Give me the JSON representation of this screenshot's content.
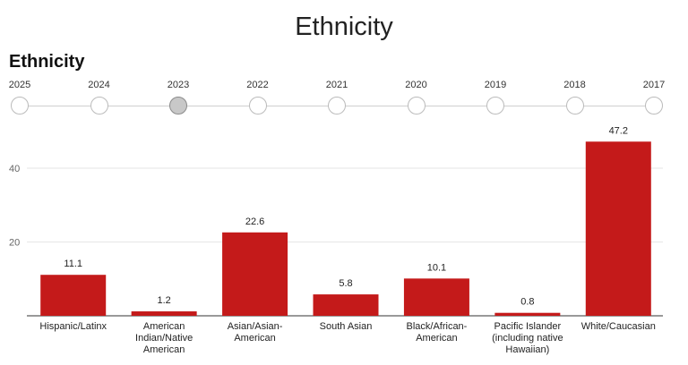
{
  "header": {
    "title": "Ethnicity"
  },
  "chart_title": "Ethnicity",
  "timeline": {
    "years": [
      "2025",
      "2024",
      "2023",
      "2022",
      "2021",
      "2020",
      "2019",
      "2018",
      "2017"
    ],
    "selected": "2023"
  },
  "chart_data": {
    "type": "bar",
    "title": "Ethnicity",
    "xlabel": "",
    "ylabel": "",
    "categories": [
      "Hispanic/Latinx",
      "American Indian/Native American",
      "Asian/Asian-American",
      "South Asian",
      "Black/African-American",
      "Pacific Islander (including native Hawaiian)",
      "White/Caucasian"
    ],
    "category_lines": [
      [
        "Hispanic/Latinx"
      ],
      [
        "American",
        "Indian/Native",
        "American"
      ],
      [
        "Asian/Asian-",
        "American"
      ],
      [
        "South Asian"
      ],
      [
        "Black/African-",
        "American"
      ],
      [
        "Pacific Islander",
        "(including native",
        "Hawaiian)"
      ],
      [
        "White/Caucasian"
      ]
    ],
    "values": [
      11.1,
      1.2,
      22.6,
      5.8,
      10.1,
      0.8,
      47.2
    ],
    "value_labels": [
      "11.1",
      "1.2",
      "22.6",
      "5.8",
      "10.1",
      "0.8",
      "47.2"
    ],
    "yticks": [
      20,
      40
    ],
    "ytick_labels": [
      "20",
      "40"
    ],
    "ylim": [
      0,
      50
    ],
    "grid": true,
    "bar_color": "#c41a1a"
  }
}
